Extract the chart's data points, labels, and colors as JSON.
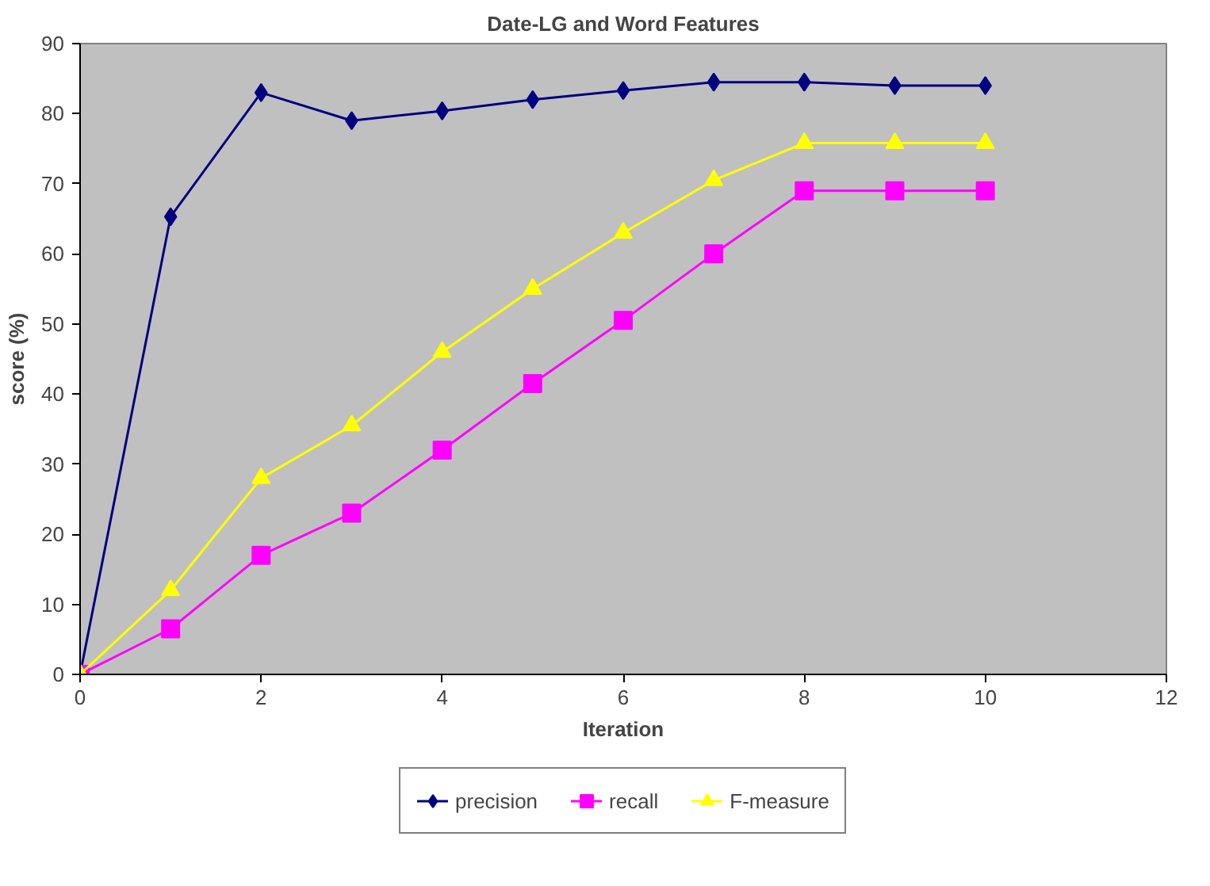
{
  "chart_data": {
    "type": "line",
    "title": "Date-LG and Word Features",
    "xlabel": "Iteration",
    "ylabel": "score (%)",
    "x": [
      0,
      1,
      2,
      3,
      4,
      5,
      6,
      7,
      8,
      9,
      10
    ],
    "series": [
      {
        "name": "precision",
        "color": "#000080",
        "marker": "diamond",
        "values": [
          0,
          65.3,
          83,
          79,
          80.4,
          82,
          83.3,
          84.5,
          84.5,
          84,
          84
        ]
      },
      {
        "name": "recall",
        "color": "#ff00ff",
        "marker": "square",
        "values": [
          0,
          6.5,
          17,
          23,
          32,
          41.5,
          50.5,
          60,
          69,
          69,
          69
        ]
      },
      {
        "name": "F-measure",
        "color": "#ffff00",
        "marker": "triangle",
        "values": [
          0,
          12,
          28,
          35.5,
          46,
          55,
          63,
          70.5,
          75.8,
          75.8,
          75.8
        ]
      }
    ],
    "xlim": [
      0,
      12
    ],
    "xticks": [
      0,
      2,
      4,
      6,
      8,
      10,
      12
    ],
    "ylim": [
      0,
      90
    ],
    "yticks": [
      0,
      10,
      20,
      30,
      40,
      50,
      60,
      70,
      80,
      90
    ],
    "grid": false,
    "legend": "bottom"
  }
}
